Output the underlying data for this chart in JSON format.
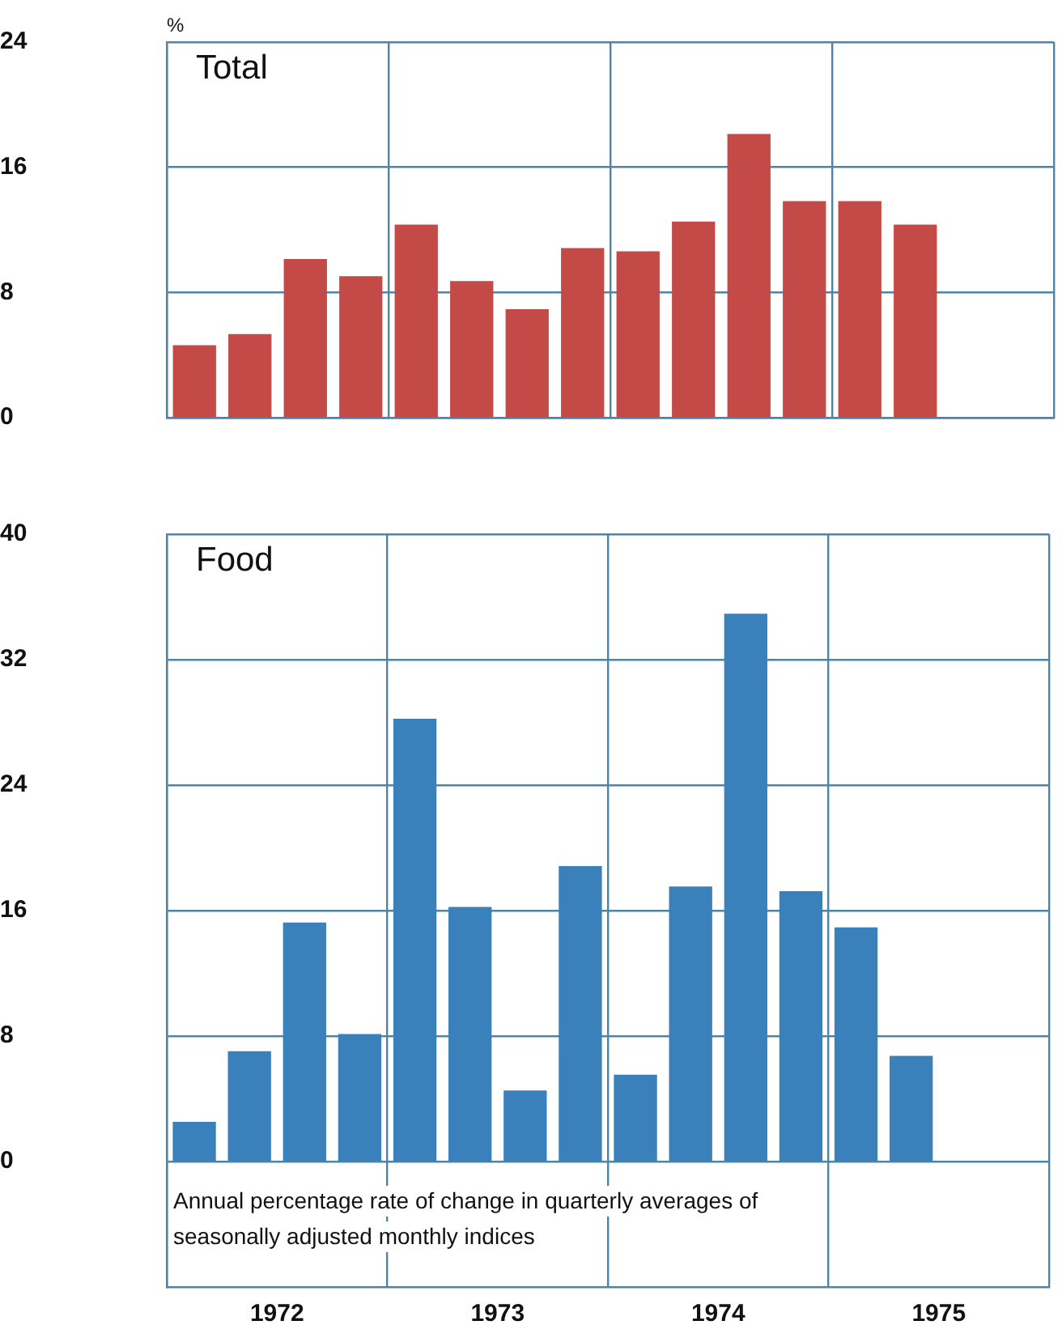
{
  "chart_data": [
    {
      "type": "bar",
      "title": "Total",
      "ylabel": "%",
      "color": "#c44a48",
      "x": [
        1972.125,
        1972.375,
        1972.625,
        1972.875,
        1973.125,
        1973.375,
        1973.625,
        1973.875,
        1974.125,
        1974.375,
        1974.625,
        1974.875,
        1975.125,
        1975.375
      ],
      "values": [
        4.6,
        5.3,
        10.1,
        9.0,
        12.3,
        8.7,
        6.9,
        10.8,
        10.6,
        12.5,
        18.1,
        13.8,
        13.8,
        12.3
      ],
      "xlim": [
        1972,
        1976
      ],
      "xticks": [
        {
          "value": 1972,
          "label": null
        },
        {
          "value": 1973,
          "label": null
        },
        {
          "value": 1974,
          "label": null
        },
        {
          "value": 1975,
          "label": null
        },
        {
          "value": 1976,
          "label": null
        }
      ],
      "ylim": [
        0,
        24
      ],
      "yticks": [
        0,
        8,
        16,
        24
      ],
      "grid": true,
      "tick_labels": "y"
    },
    {
      "type": "bar",
      "title": "Food",
      "color": "#3a80bb",
      "x": [
        1972.125,
        1972.375,
        1972.625,
        1972.875,
        1973.125,
        1973.375,
        1973.625,
        1973.875,
        1974.125,
        1974.375,
        1974.625,
        1974.875,
        1975.125,
        1975.375
      ],
      "values": [
        2.5,
        7.0,
        15.2,
        8.1,
        28.2,
        16.2,
        4.5,
        18.8,
        5.5,
        17.5,
        34.9,
        17.2,
        14.9,
        6.7
      ],
      "xlim": [
        1972,
        1976
      ],
      "xticks": [
        {
          "value": 1972,
          "label": null
        },
        {
          "value": 1972.5,
          "label": "1972"
        },
        {
          "value": 1973,
          "label": null
        },
        {
          "value": 1973.5,
          "label": "1973"
        },
        {
          "value": 1974,
          "label": null
        },
        {
          "value": 1974.5,
          "label": "1974"
        },
        {
          "value": 1975,
          "label": null
        },
        {
          "value": 1975.5,
          "label": "1975"
        },
        {
          "value": 1976,
          "label": null
        }
      ],
      "ylim": [
        -8,
        40
      ],
      "yticks": [
        0,
        8,
        16,
        24,
        32,
        40
      ],
      "grid": true,
      "annotations": [
        "Annual percentage rate of change in quarterly averages of seasonally adjusted monthly indices"
      ]
    }
  ]
}
